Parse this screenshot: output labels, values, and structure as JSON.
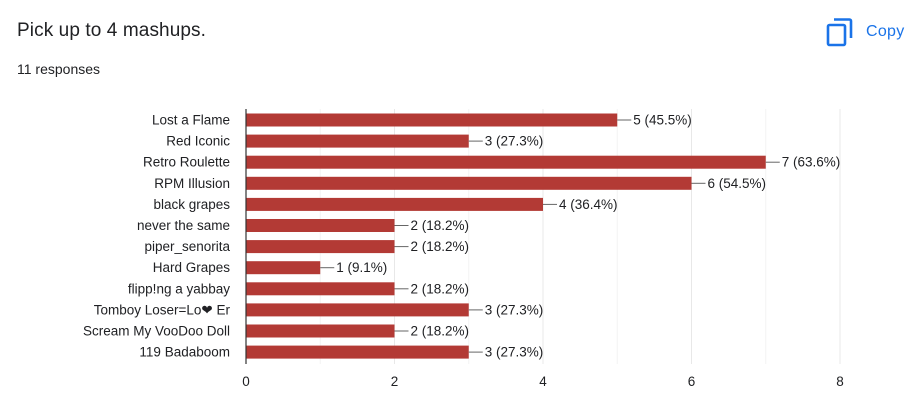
{
  "question": {
    "title": "Pick up to 4 mashups.",
    "responses": "11 responses"
  },
  "toolbar": {
    "copy_label": "Copy",
    "copy_icon": "copy-icon"
  },
  "colors": {
    "bar": "#b33a35",
    "accent": "#1a73e8",
    "grid": "#e8e8e8",
    "baseline": "#333333"
  },
  "chart_data": {
    "type": "bar",
    "orientation": "horizontal",
    "categories": [
      "Lost a Flame",
      "Red Iconic",
      "Retro Roulette",
      "RPM Illusion",
      "black grapes",
      "never the same",
      "piper_senorita",
      "Hard Grapes",
      "flipp!ng a yabbay",
      "Tomboy Loser=Lo❤ Er",
      "Scream My VooDoo Doll",
      "119 Badaboom"
    ],
    "values": [
      5,
      3,
      7,
      6,
      4,
      2,
      2,
      1,
      2,
      3,
      2,
      3
    ],
    "data_labels": [
      "5 (45.5%)",
      "3 (27.3%)",
      "7 (63.6%)",
      "6 (54.5%)",
      "4 (36.4%)",
      "2 (18.2%)",
      "2 (18.2%)",
      "1 (9.1%)",
      "2 (18.2%)",
      "3 (27.3%)",
      "2 (18.2%)",
      "3 (27.3%)"
    ],
    "xlim": [
      0,
      8
    ],
    "xticks": [
      "0",
      "2",
      "4",
      "6",
      "8"
    ],
    "grid": true,
    "title": "",
    "xlabel": "",
    "ylabel": ""
  }
}
